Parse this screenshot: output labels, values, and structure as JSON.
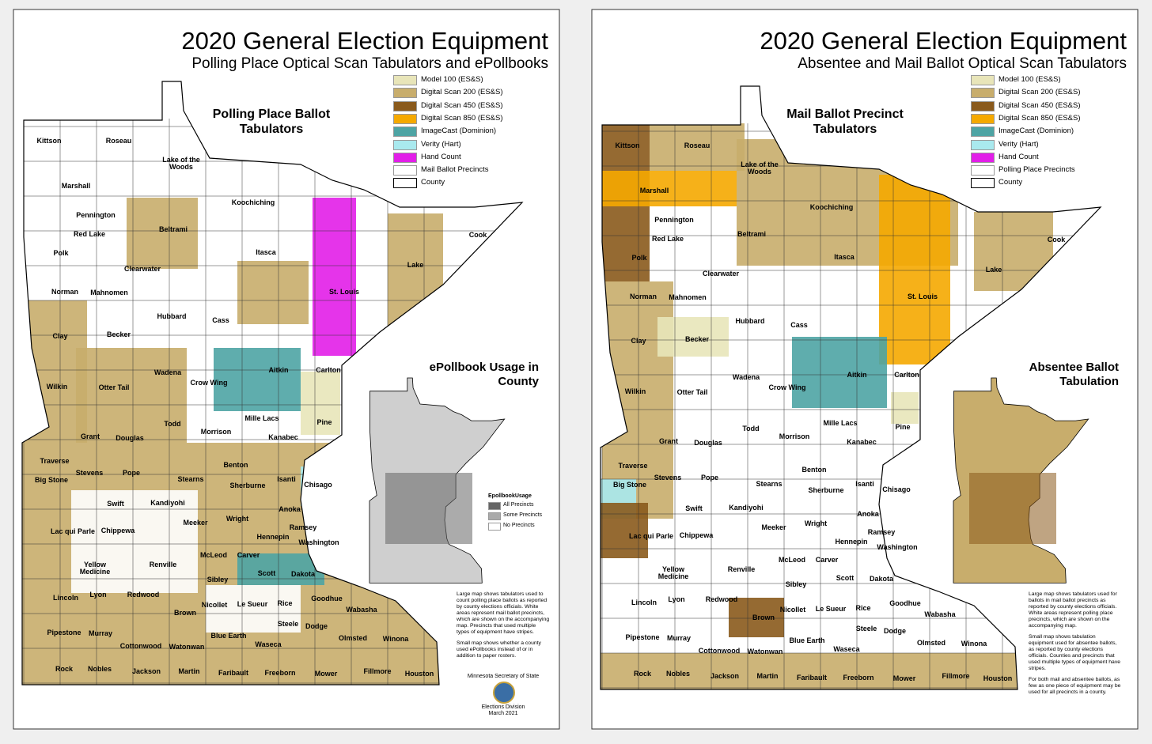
{
  "maps": [
    {
      "title": "2020 General Election Equipment",
      "subtitle": "Polling Place Optical Scan Tabulators and ePollbooks",
      "map_title": "Polling Place Ballot Tabulators",
      "inset_title": "ePollbook Usage in County",
      "legend": [
        {
          "label": "Model 100 (ES&S)",
          "color": "#e8e5b9"
        },
        {
          "label": "Digital Scan 200 (ES&S)",
          "color": "#c8ad6c"
        },
        {
          "label": "Digital Scan 450 (ES&S)",
          "color": "#8a5a1c"
        },
        {
          "label": "Digital Scan 850 (ES&S)",
          "color": "#f5a900"
        },
        {
          "label": "ImageCast (Dominion)",
          "color": "#4ea4a4"
        },
        {
          "label": "Verity (Hart)",
          "color": "#a9e9ee"
        },
        {
          "label": "Hand Count",
          "color": "#e21ee8"
        },
        {
          "label": "Mail Ballot Precincts",
          "color": "#ffffff"
        },
        {
          "label": "County",
          "color": "#ffffff"
        }
      ],
      "inset_legend_title": "EpollbookUsage",
      "inset_legend": [
        {
          "label": "All Precincts",
          "color": "#666666"
        },
        {
          "label": "Some Precincts",
          "color": "#aaaaaa"
        },
        {
          "label": "No Precincts",
          "color": "#ffffff"
        }
      ],
      "note": [
        "Large map shows tabulators used to count polling place ballots as reported by county elections officials. White areas represent mail ballot precincts, which are shown on the accompanying map.  Precincts that used multiple types of equipment have stripes.",
        "Small map shows whether a county used ePollbooks instead of or in addition to paper rosters."
      ],
      "footer": [
        "Minnesota Secretary of State",
        "Elections Division",
        "March 2021"
      ]
    },
    {
      "title": "2020 General Election Equipment",
      "subtitle": "Absentee and Mail Ballot Optical Scan Tabulators",
      "map_title": "Mail Ballot Precinct Tabulators",
      "inset_title": "Absentee Ballot Tabulation",
      "legend": [
        {
          "label": "Model 100 (ES&S)",
          "color": "#e8e5b9"
        },
        {
          "label": "Digital Scan 200 (ES&S)",
          "color": "#c8ad6c"
        },
        {
          "label": "Digital Scan 450 (ES&S)",
          "color": "#8a5a1c"
        },
        {
          "label": "Digital Scan 850 (ES&S)",
          "color": "#f5a900"
        },
        {
          "label": "ImageCast (Dominion)",
          "color": "#4ea4a4"
        },
        {
          "label": "Verity (Hart)",
          "color": "#a9e9ee"
        },
        {
          "label": "Hand Count",
          "color": "#e21ee8"
        },
        {
          "label": "Polling Place Precincts",
          "color": "#ffffff"
        },
        {
          "label": "County",
          "color": "#ffffff"
        }
      ],
      "note": [
        "Large map shows tabulators used for ballots in mail ballot precincts as reported by county elections officials. White areas represent polling place precincts, which are shown on the accompanying map.",
        "Small map shows tabulation equipment used for absentee ballots, as reported by county elections officials. Counties and precincts that used multiple types of equipment have stripes.",
        "For both mail and absentee ballots, as few as one piece of equipment may be used for all precincts in a county."
      ]
    }
  ],
  "counties": [
    "Kittson",
    "Roseau",
    "Lake of the Woods",
    "Marshall",
    "Koochiching",
    "Pennington",
    "Red Lake",
    "Polk",
    "Beltrami",
    "Cook",
    "Lake",
    "St. Louis",
    "Itasca",
    "Clearwater",
    "Norman",
    "Mahnomen",
    "Hubbard",
    "Cass",
    "Clay",
    "Becker",
    "Carlton",
    "Aitkin",
    "Crow Wing",
    "Wadena",
    "Wilkin",
    "Otter Tail",
    "Mille Lacs",
    "Pine",
    "Todd",
    "Grant",
    "Douglas",
    "Morrison",
    "Kanabec",
    "Traverse",
    "Big Stone",
    "Stevens",
    "Pope",
    "Benton",
    "Stearns",
    "Isanti",
    "Chisago",
    "Sherburne",
    "Swift",
    "Kandiyohi",
    "Anoka",
    "Lac qui Parle",
    "Chippewa",
    "Meeker",
    "Wright",
    "Ramsey",
    "Washington",
    "Hennepin",
    "Yellow Medicine",
    "Renville",
    "McLeod",
    "Carver",
    "Scott",
    "Dakota",
    "Sibley",
    "Lincoln",
    "Lyon",
    "Redwood",
    "Nicollet",
    "Le Sueur",
    "Rice",
    "Goodhue",
    "Wabasha",
    "Brown",
    "Pipestone",
    "Murray",
    "Blue Earth",
    "Steele",
    "Dodge",
    "Waseca",
    "Olmsted",
    "Winona",
    "Cottonwood",
    "Watonwan",
    "Rock",
    "Nobles",
    "Jackson",
    "Martin",
    "Faribault",
    "Freeborn",
    "Mower",
    "Fillmore",
    "Houston"
  ]
}
